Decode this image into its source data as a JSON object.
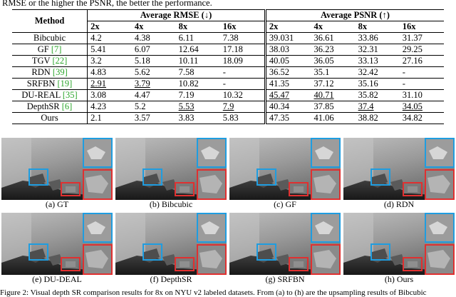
{
  "top_caption": "RMSE or the higher the PSNR, the better the performance.",
  "table": {
    "method_header": "Method",
    "rmse_header": "Average RMSE (↓)",
    "psnr_header": "Average PSNR (↑)",
    "scales": [
      "2x",
      "4x",
      "8x",
      "16x"
    ],
    "rows": [
      {
        "name": "Bibcubic",
        "ref": "",
        "rmse": [
          "4.2",
          "4.38",
          "6.11",
          "7.38"
        ],
        "psnr": [
          "39.031",
          "36.61",
          "33.86",
          "31.37"
        ]
      },
      {
        "name": "GF ",
        "ref": "[7]",
        "rmse": [
          "5.41",
          "6.07",
          "12.64",
          "17.18"
        ],
        "psnr": [
          "38.03",
          "36.23",
          "32.31",
          "29.25"
        ]
      },
      {
        "name": "TGV ",
        "ref": "[22]",
        "rmse": [
          "3.2",
          "5.18",
          "10.11",
          "18.09"
        ],
        "psnr": [
          "40.05",
          "36.05",
          "33.13",
          "27.16"
        ]
      },
      {
        "name": "RDN ",
        "ref": "[39]",
        "rmse": [
          "4.83",
          "5.62",
          "7.58",
          "-"
        ],
        "psnr": [
          "36.52",
          "35.1",
          "32.42",
          "-"
        ]
      },
      {
        "name": "SRFBN ",
        "ref": "[19]",
        "rmse": [
          "2.91",
          "3.79",
          "10.82",
          "-"
        ],
        "psnr": [
          "41.35",
          "37.12",
          "35.16",
          "-"
        ]
      },
      {
        "name": "DU-REAL ",
        "ref": "[35]",
        "rmse": [
          "3.08",
          "4.47",
          "7.19",
          "10.32"
        ],
        "psnr": [
          "45.47",
          "40.71",
          "35.82",
          "31.10"
        ]
      },
      {
        "name": "DepthSR ",
        "ref": "[6]",
        "rmse": [
          "4.23",
          "5.2",
          "5.53",
          "7.9"
        ],
        "psnr": [
          "40.34",
          "37.85",
          "37.4",
          "34.05"
        ]
      },
      {
        "name": "Ours",
        "ref": "",
        "rmse": [
          "2.1",
          "3.57",
          "3.83",
          "5.83"
        ],
        "psnr": [
          "47.35",
          "41.06",
          "38.82",
          "34.82"
        ]
      }
    ]
  },
  "figure": {
    "labels": [
      "(a) GT",
      "(b) Bibcubic",
      "(c) GF",
      "(d) RDN",
      "(e) DU-DEAL",
      "(f) DepthSR",
      "(g) SRFBN",
      "(h) Ours"
    ],
    "box_colors": {
      "blue": "#1f9de0",
      "red": "#e03030"
    }
  },
  "bottom_caption": "Figure 2: Visual depth SR comparison results for 8x on NYU v2 labeled datasets. From (a) to (h) are the upsampling results of Bibcubic"
}
